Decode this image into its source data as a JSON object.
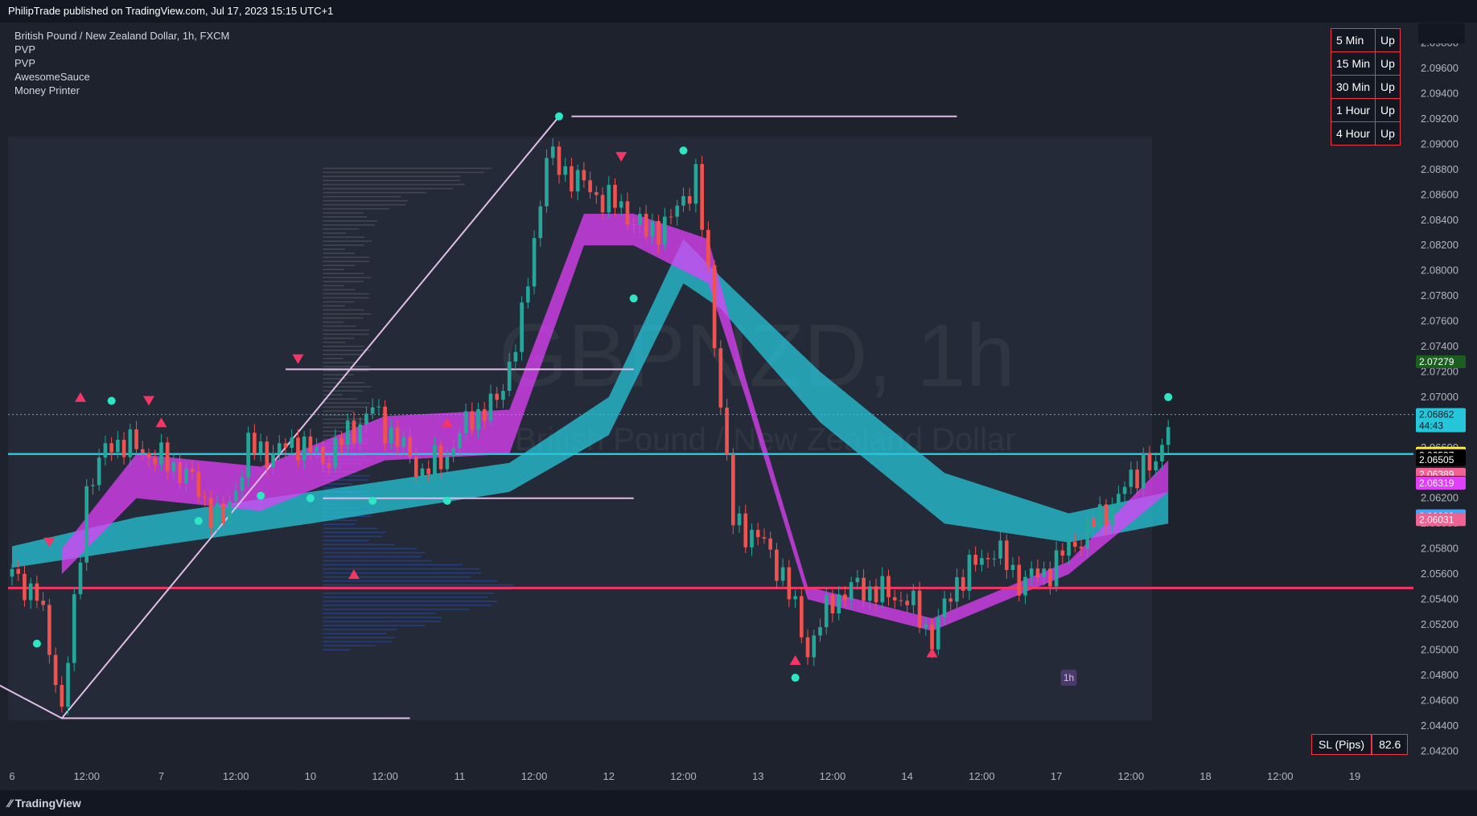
{
  "header": {
    "published": "PhilipTrade published on TradingView.com, Jul 17, 2023 15:15 UTC+1"
  },
  "legend": [
    "British Pound / New Zealand Dollar, 1h, FXCM",
    "PVP",
    "PVP",
    "AwesomeSauce",
    "Money Printer"
  ],
  "timeframes": [
    {
      "label": "5 Min",
      "trend": "Up"
    },
    {
      "label": "15 Min",
      "trend": "Up"
    },
    {
      "label": "30 Min",
      "trend": "Up"
    },
    {
      "label": "1 Hour",
      "trend": "Up"
    },
    {
      "label": "4 Hour",
      "trend": "Up"
    }
  ],
  "sl": {
    "label": "SL (Pips)",
    "value": "82.6"
  },
  "watermark": {
    "symbol": "GBPNZD, 1h",
    "name": "British Pound / New Zealand Dollar"
  },
  "footer": {
    "brand": "TradingView"
  },
  "tags": {
    "interval": "1h"
  },
  "colors": {
    "background": "#1e222d",
    "up": "#26a69a",
    "down": "#ef5350",
    "cyan": "#26c6da",
    "magenta": "#e040fb",
    "pink": "#f23665"
  },
  "chart_data": {
    "type": "candlestick",
    "y_ticks": [
      "2.09800",
      "2.09600",
      "2.09400",
      "2.09200",
      "2.09000",
      "2.08800",
      "2.08600",
      "2.08400",
      "2.08200",
      "2.08000",
      "2.07800",
      "2.07600",
      "2.07400",
      "2.07200",
      "2.07000",
      "2.06800",
      "2.06600",
      "2.06400",
      "2.06200",
      "2.06000",
      "2.05800",
      "2.05600",
      "2.05400",
      "2.05200",
      "2.05000",
      "2.04800",
      "2.04600",
      "2.04400",
      "2.04200"
    ],
    "y_range": [
      2.041,
      2.0995
    ],
    "x_ticks": [
      {
        "label": "6",
        "t": 0
      },
      {
        "label": "12:00",
        "t": 12
      },
      {
        "label": "7",
        "t": 24
      },
      {
        "label": "12:00",
        "t": 36
      },
      {
        "label": "10",
        "t": 48
      },
      {
        "label": "12:00",
        "t": 60
      },
      {
        "label": "11",
        "t": 72
      },
      {
        "label": "12:00",
        "t": 84
      },
      {
        "label": "12",
        "t": 96
      },
      {
        "label": "12:00",
        "t": 108
      },
      {
        "label": "13",
        "t": 120
      },
      {
        "label": "12:00",
        "t": 132
      },
      {
        "label": "14",
        "t": 144
      },
      {
        "label": "12:00",
        "t": 156
      },
      {
        "label": "17",
        "t": 168
      },
      {
        "label": "12:00",
        "t": 180
      },
      {
        "label": "18",
        "t": 192
      },
      {
        "label": "12:00",
        "t": 204
      },
      {
        "label": "19",
        "t": 216
      }
    ],
    "price_labels": [
      {
        "value": "2.07279",
        "bg": "#1b5e20",
        "fg": "#ffffff"
      },
      {
        "value": "2.06862",
        "bg": "#26c6da",
        "fg": "#131722",
        "sub": "44:43"
      },
      {
        "value": "2.06556",
        "bg": "#ffeb3b",
        "fg": "#131722"
      },
      {
        "value": "2.06537",
        "bg": "#000000",
        "fg": "#ffffff"
      },
      {
        "value": "2.06505",
        "bg": "#000000",
        "fg": "#ffffff"
      },
      {
        "value": "2.06389",
        "bg": "#f06292",
        "fg": "#ffffff"
      },
      {
        "value": "2.06326",
        "bg": "#880e4f",
        "fg": "#ffffff"
      },
      {
        "value": "2.06319",
        "bg": "#e040fb",
        "fg": "#ffffff"
      },
      {
        "value": "2.06061",
        "bg": "#f23665",
        "fg": "#ffffff"
      },
      {
        "value": "2.06060",
        "bg": "#42a5f5",
        "fg": "#ffffff"
      },
      {
        "value": "2.06031",
        "bg": "#f06292",
        "fg": "#ffffff"
      }
    ],
    "price_path": [
      [
        0,
        2.0558
      ],
      [
        4,
        2.0545
      ],
      [
        8,
        2.0455
      ],
      [
        10,
        2.053
      ],
      [
        12,
        2.0628
      ],
      [
        16,
        2.0665
      ],
      [
        20,
        2.066
      ],
      [
        24,
        2.065
      ],
      [
        28,
        2.064
      ],
      [
        32,
        2.061
      ],
      [
        34,
        2.06
      ],
      [
        38,
        2.066
      ],
      [
        42,
        2.0655
      ],
      [
        46,
        2.0665
      ],
      [
        50,
        2.065
      ],
      [
        54,
        2.067
      ],
      [
        58,
        2.069
      ],
      [
        62,
        2.0665
      ],
      [
        66,
        2.064
      ],
      [
        70,
        2.0655
      ],
      [
        74,
        2.0685
      ],
      [
        78,
        2.0695
      ],
      [
        82,
        2.076
      ],
      [
        86,
        2.089
      ],
      [
        90,
        2.0875
      ],
      [
        94,
        2.086
      ],
      [
        98,
        2.085
      ],
      [
        102,
        2.083
      ],
      [
        106,
        2.084
      ],
      [
        110,
        2.0875
      ],
      [
        112,
        2.0795
      ],
      [
        116,
        2.06
      ],
      [
        120,
        2.059
      ],
      [
        124,
        2.056
      ],
      [
        128,
        2.05
      ],
      [
        132,
        2.054
      ],
      [
        136,
        2.055
      ],
      [
        140,
        2.0545
      ],
      [
        144,
        2.054
      ],
      [
        148,
        2.051
      ],
      [
        152,
        2.0555
      ],
      [
        158,
        2.058
      ],
      [
        162,
        2.0555
      ],
      [
        166,
        2.056
      ],
      [
        170,
        2.058
      ],
      [
        174,
        2.06
      ],
      [
        178,
        2.062
      ],
      [
        182,
        2.065
      ],
      [
        184,
        2.064
      ],
      [
        186,
        2.06862
      ]
    ]
  }
}
